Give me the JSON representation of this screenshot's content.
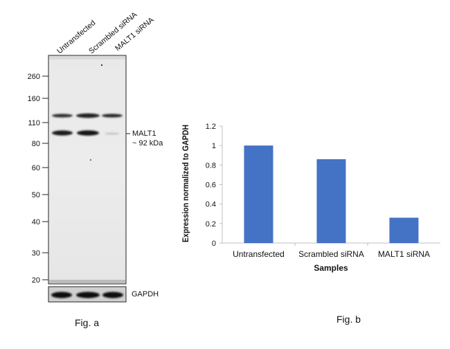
{
  "figure_a": {
    "caption": "Fig. a",
    "lane_labels": [
      "Untransfected",
      "Scrambled siRNA",
      "MALT1 siRNA"
    ],
    "marker_labels": [
      "260",
      "160",
      "110",
      "80",
      "60",
      "50",
      "40",
      "30",
      "20"
    ],
    "target_label": "MALT1",
    "target_size": "~ 92 kDa",
    "loading_control_label": "GAPDH"
  },
  "figure_b": {
    "caption": "Fig. b"
  },
  "chart_data": {
    "type": "bar",
    "categories": [
      "Untransfected",
      "Scrambled siRNA",
      "MALT1 siRNA"
    ],
    "values": [
      1.0,
      0.86,
      0.26
    ],
    "xlabel": "Samples",
    "ylabel": "Expression  normalized to GAPDH",
    "ylim": [
      0,
      1.2
    ],
    "yticks": [
      "0",
      "0.2",
      "0.4",
      "0.6",
      "0.8",
      "1",
      "1.2"
    ],
    "bar_color": "#4472C4",
    "grid": false,
    "legend": "none"
  }
}
